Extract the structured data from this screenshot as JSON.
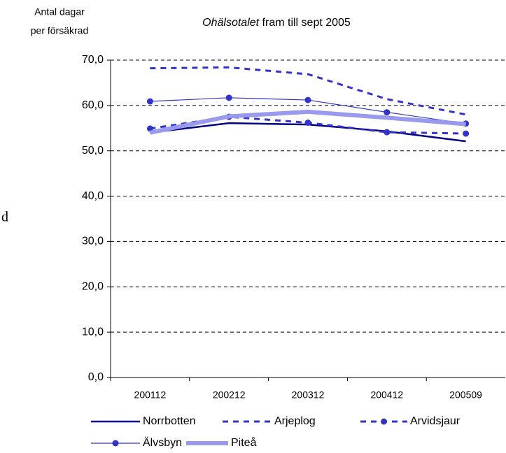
{
  "chart_data": {
    "type": "line",
    "title": [
      "Ohälsotalet",
      "fram till sept 2005"
    ],
    "y_label": [
      "Antal dagar",
      "per försäkrad"
    ],
    "annotation": "d",
    "categories": [
      "200112",
      "200212",
      "200312",
      "200412",
      "200509"
    ],
    "ylim": [
      0,
      70
    ],
    "yticks": [
      {
        "value": 0,
        "label": "0,0"
      },
      {
        "value": 10,
        "label": "10,0"
      },
      {
        "value": 20,
        "label": "20,0"
      },
      {
        "value": 30,
        "label": "30,0"
      },
      {
        "value": 40,
        "label": "40,0"
      },
      {
        "value": 50,
        "label": "50,0"
      },
      {
        "value": 60,
        "label": "60,0"
      },
      {
        "value": 70,
        "label": "70,0"
      }
    ],
    "grid": true,
    "series": [
      {
        "name": "Norrbotten",
        "color": "#000080",
        "width": 2.5,
        "dash": false,
        "marker": false,
        "values": [
          54.0,
          56.1,
          55.8,
          54.3,
          52.1
        ]
      },
      {
        "name": "Arjeplog",
        "color": "#3333cc",
        "width": 3,
        "dash": true,
        "marker": false,
        "values": [
          68.2,
          68.4,
          66.9,
          61.4,
          58.0
        ]
      },
      {
        "name": "Arvidsjaur",
        "color": "#3333cc",
        "width": 3,
        "dash": true,
        "marker": true,
        "values": [
          54.9,
          57.5,
          56.2,
          54.1,
          53.8
        ]
      },
      {
        "name": "Älvsbyn",
        "color": "#3333cc",
        "width": 1.2,
        "dash": false,
        "marker": true,
        "values": [
          60.9,
          61.7,
          61.2,
          58.5,
          56.0
        ]
      },
      {
        "name": "Piteå",
        "color": "#9999ee",
        "width": 6,
        "dash": false,
        "marker": false,
        "values": [
          54.0,
          57.6,
          58.6,
          57.3,
          55.9
        ]
      }
    ]
  }
}
